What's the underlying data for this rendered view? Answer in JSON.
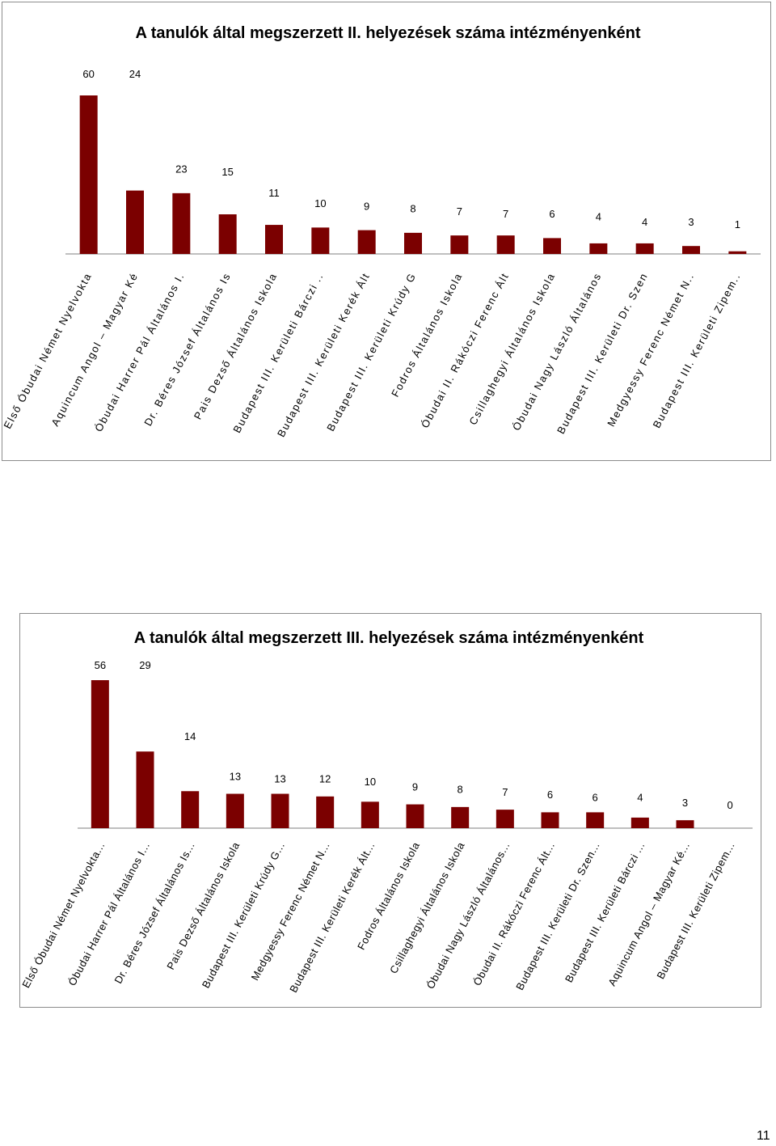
{
  "page_number": "11",
  "colors": {
    "bar": "#7b0000",
    "axis": "#7f7f7f"
  },
  "chart_data": [
    {
      "type": "bar",
      "title": "A tanulók által megszerzett II. helyezések száma intézményenként",
      "categories": [
        "Első Óbudai Német Nyelvokta",
        "Aquincum Angol – Magyar Ké",
        "Óbudai Harrer Pál Általános I.",
        "Dr. Béres József Általános Is",
        "Pais Dezső Általános Iskola",
        "Budapest III. Kerületi Bárczi ..",
        "Budapest III. Kerületi Kerék Ált",
        "Budapest III. Kerületi Krúdy G",
        "Fodros Általános Iskola",
        "Óbudai II. Rákóczi Ferenc Ált",
        "Csillaghegyi Általános Iskola",
        "Óbudai Nagy László Általános",
        "Budapest III. Kerületi Dr. Szen",
        "Medgyessy Ferenc Német N..",
        "Budapest III. Kerületi Zipem.."
      ],
      "values": [
        60,
        24,
        23,
        15,
        11,
        10,
        9,
        8,
        7,
        7,
        6,
        4,
        4,
        3,
        1
      ],
      "labels": [
        "60",
        "24",
        "23",
        "15",
        "11",
        "10",
        "9",
        "8",
        "7",
        "7",
        "6",
        "4",
        "4",
        "3",
        "1"
      ],
      "ylim": [
        0,
        60
      ]
    },
    {
      "type": "bar",
      "title": "A tanulók által megszerzett III. helyezések száma intézményenként",
      "categories": [
        "Első Óbudai Német Nyelvokta...",
        "Óbudai Harrer Pál Általános I...",
        "Dr. Béres József Általános Is...",
        "Pais Dezső Általános Iskola",
        "Budapest III. Kerületi Krúdy G...",
        "Medgyessy Ferenc Német N...",
        "Budapest III. Kerületi Kerék Ált...",
        "Fodros Általános Iskola",
        "Csillaghegyi Általános Iskola",
        "Óbudai Nagy László Általános...",
        "Óbudai II. Rákóczi Ferenc Ált...",
        "Budapest III. Kerületi Dr. Szen...",
        "Budapest III. Kerületi Bárczi ...",
        "Aquincum Angol – Magyar Ké...",
        "Budapest III. Kerületi Zipem..."
      ],
      "values": [
        56,
        29,
        14,
        13,
        13,
        12,
        10,
        9,
        8,
        7,
        6,
        6,
        4,
        3,
        0
      ],
      "labels": [
        "56",
        "29",
        "14",
        "13",
        "13",
        "12",
        "10",
        "9",
        "8",
        "7",
        "6",
        "6",
        "4",
        "3",
        "0"
      ],
      "ylim": [
        0,
        56
      ]
    }
  ]
}
